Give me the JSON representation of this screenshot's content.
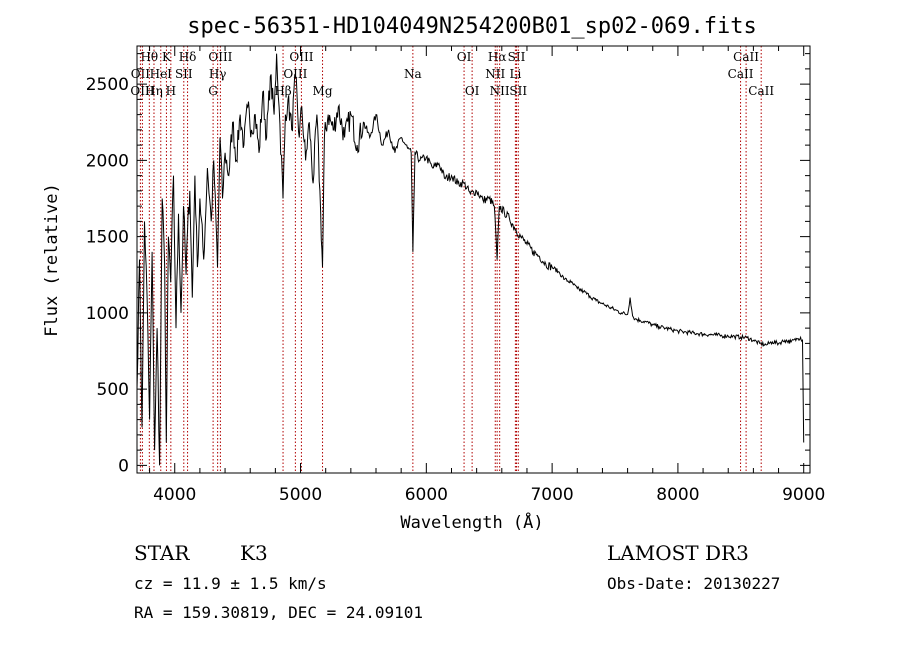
{
  "chart_data": {
    "type": "line",
    "title": "spec-56351-HD104049N254200B01_sp02-069.fits",
    "xlabel": "Wavelength (Å)",
    "ylabel": "Flux (relative)",
    "xlim": [
      3700,
      9050
    ],
    "ylim": [
      -50,
      2750
    ],
    "xticks": [
      4000,
      5000,
      6000,
      7000,
      8000,
      9000
    ],
    "yticks": [
      0,
      500,
      1000,
      1500,
      2000,
      2500
    ],
    "series": [
      {
        "name": "flux",
        "x": [
          3700,
          3720,
          3740,
          3760,
          3780,
          3800,
          3820,
          3840,
          3860,
          3880,
          3900,
          3920,
          3933,
          3950,
          3968,
          3990,
          4010,
          4030,
          4050,
          4070,
          4090,
          4102,
          4120,
          4140,
          4160,
          4180,
          4200,
          4230,
          4260,
          4290,
          4310,
          4340,
          4360,
          4380,
          4400,
          4430,
          4460,
          4490,
          4520,
          4550,
          4580,
          4610,
          4640,
          4670,
          4700,
          4730,
          4760,
          4790,
          4810,
          4830,
          4861,
          4880,
          4900,
          4930,
          4960,
          4990,
          5010,
          5040,
          5070,
          5100,
          5130,
          5160,
          5175,
          5190,
          5220,
          5260,
          5300,
          5350,
          5400,
          5450,
          5500,
          5550,
          5600,
          5650,
          5700,
          5750,
          5800,
          5850,
          5880,
          5893,
          5910,
          5950,
          6000,
          6050,
          6100,
          6150,
          6200,
          6250,
          6300,
          6350,
          6400,
          6450,
          6500,
          6540,
          6563,
          6580,
          6620,
          6660,
          6700,
          6750,
          6800,
          6850,
          6900,
          6950,
          7000,
          7050,
          7100,
          7150,
          7200,
          7250,
          7300,
          7350,
          7400,
          7450,
          7500,
          7550,
          7600,
          7620,
          7640,
          7660,
          7700,
          7750,
          7800,
          7850,
          7900,
          7950,
          8000,
          8050,
          8100,
          8150,
          8200,
          8250,
          8300,
          8350,
          8400,
          8450,
          8500,
          8550,
          8600,
          8650,
          8700,
          8750,
          8800,
          8850,
          8900,
          8950,
          8975,
          8990,
          9000
        ],
        "y": [
          500,
          1350,
          250,
          1600,
          1100,
          300,
          1400,
          100,
          900,
          0,
          1750,
          1300,
          150,
          1500,
          1200,
          1900,
          900,
          1650,
          1000,
          1700,
          1250,
          1550,
          1800,
          1100,
          1900,
          1300,
          1750,
          1350,
          1950,
          1600,
          2000,
          1300,
          2150,
          1750,
          2050,
          1900,
          2250,
          2000,
          2300,
          2100,
          2350,
          2200,
          2300,
          2050,
          2450,
          2150,
          2550,
          2300,
          2700,
          2350,
          1750,
          2300,
          2400,
          2200,
          2550,
          2150,
          2350,
          2000,
          2250,
          1850,
          2300,
          1650,
          1300,
          2150,
          2300,
          2200,
          2350,
          2150,
          2300,
          2100,
          2250,
          2150,
          2300,
          2100,
          2200,
          2050,
          2150,
          2080,
          2050,
          1400,
          2050,
          2000,
          2020,
          1950,
          1980,
          1880,
          1900,
          1850,
          1850,
          1780,
          1800,
          1740,
          1750,
          1700,
          1350,
          1700,
          1660,
          1620,
          1560,
          1500,
          1450,
          1400,
          1370,
          1320,
          1300,
          1270,
          1220,
          1200,
          1160,
          1140,
          1110,
          1080,
          1060,
          1040,
          1020,
          1000,
          990,
          1100,
          980,
          960,
          950,
          940,
          920,
          910,
          900,
          890,
          880,
          875,
          870,
          865,
          860,
          858,
          855,
          850,
          848,
          845,
          840,
          838,
          820,
          800,
          790,
          810,
          800,
          820,
          810,
          830,
          840,
          820,
          150
        ]
      }
    ],
    "line_markers": [
      {
        "label": "Hθ",
        "wavelength": 3798,
        "row": 1
      },
      {
        "label": "OII",
        "wavelength": 3727,
        "row": 2
      },
      {
        "label": "OIII",
        "wavelength": 3743,
        "row": 3
      },
      {
        "label": "K",
        "wavelength": 3934,
        "row": 1
      },
      {
        "label": "HeI",
        "wavelength": 3889,
        "row": 2
      },
      {
        "label": "Hη",
        "wavelength": 3835,
        "row": 3
      },
      {
        "label": "H",
        "wavelength": 3969,
        "row": 3
      },
      {
        "label": "Hδ",
        "wavelength": 4102,
        "row": 1
      },
      {
        "label": "SII",
        "wavelength": 4072,
        "row": 2
      },
      {
        "label": "OIII",
        "wavelength": 4363,
        "row": 1
      },
      {
        "label": "Hγ",
        "wavelength": 4341,
        "row": 2
      },
      {
        "label": "G",
        "wavelength": 4305,
        "row": 3
      },
      {
        "label": "Hβ",
        "wavelength": 4861,
        "row": 3
      },
      {
        "label": "OIII",
        "wavelength": 5007,
        "row": 1
      },
      {
        "label": "OIII",
        "wavelength": 4959,
        "row": 2
      },
      {
        "label": "Mg",
        "wavelength": 5175,
        "row": 3
      },
      {
        "label": "Na",
        "wavelength": 5893,
        "row": 2
      },
      {
        "label": "OI",
        "wavelength": 6300,
        "row": 1
      },
      {
        "label": "OI",
        "wavelength": 6364,
        "row": 3
      },
      {
        "label": "Hα",
        "wavelength": 6563,
        "row": 1
      },
      {
        "label": "SII",
        "wavelength": 6717,
        "row": 1
      },
      {
        "label": "NII",
        "wavelength": 6548,
        "row": 2
      },
      {
        "label": "Li",
        "wavelength": 6708,
        "row": 2
      },
      {
        "label": "NII",
        "wavelength": 6583,
        "row": 3
      },
      {
        "label": "SII",
        "wavelength": 6731,
        "row": 3
      },
      {
        "label": "CaII",
        "wavelength": 8542,
        "row": 1
      },
      {
        "label": "CaII",
        "wavelength": 8498,
        "row": 2
      },
      {
        "label": "CaII",
        "wavelength": 8662,
        "row": 3
      }
    ]
  },
  "info": {
    "class_text": "STAR",
    "subclass_text": "K3",
    "survey": "LAMOST DR3",
    "cz": "cz = 11.9 ± 1.5 km/s",
    "obs_date": "Obs-Date: 20130227",
    "radec": "RA = 159.30819, DEC =  24.09101"
  },
  "colors": {
    "line_marker": "#b00000",
    "spectrum": "#000000",
    "axes": "#000000"
  }
}
